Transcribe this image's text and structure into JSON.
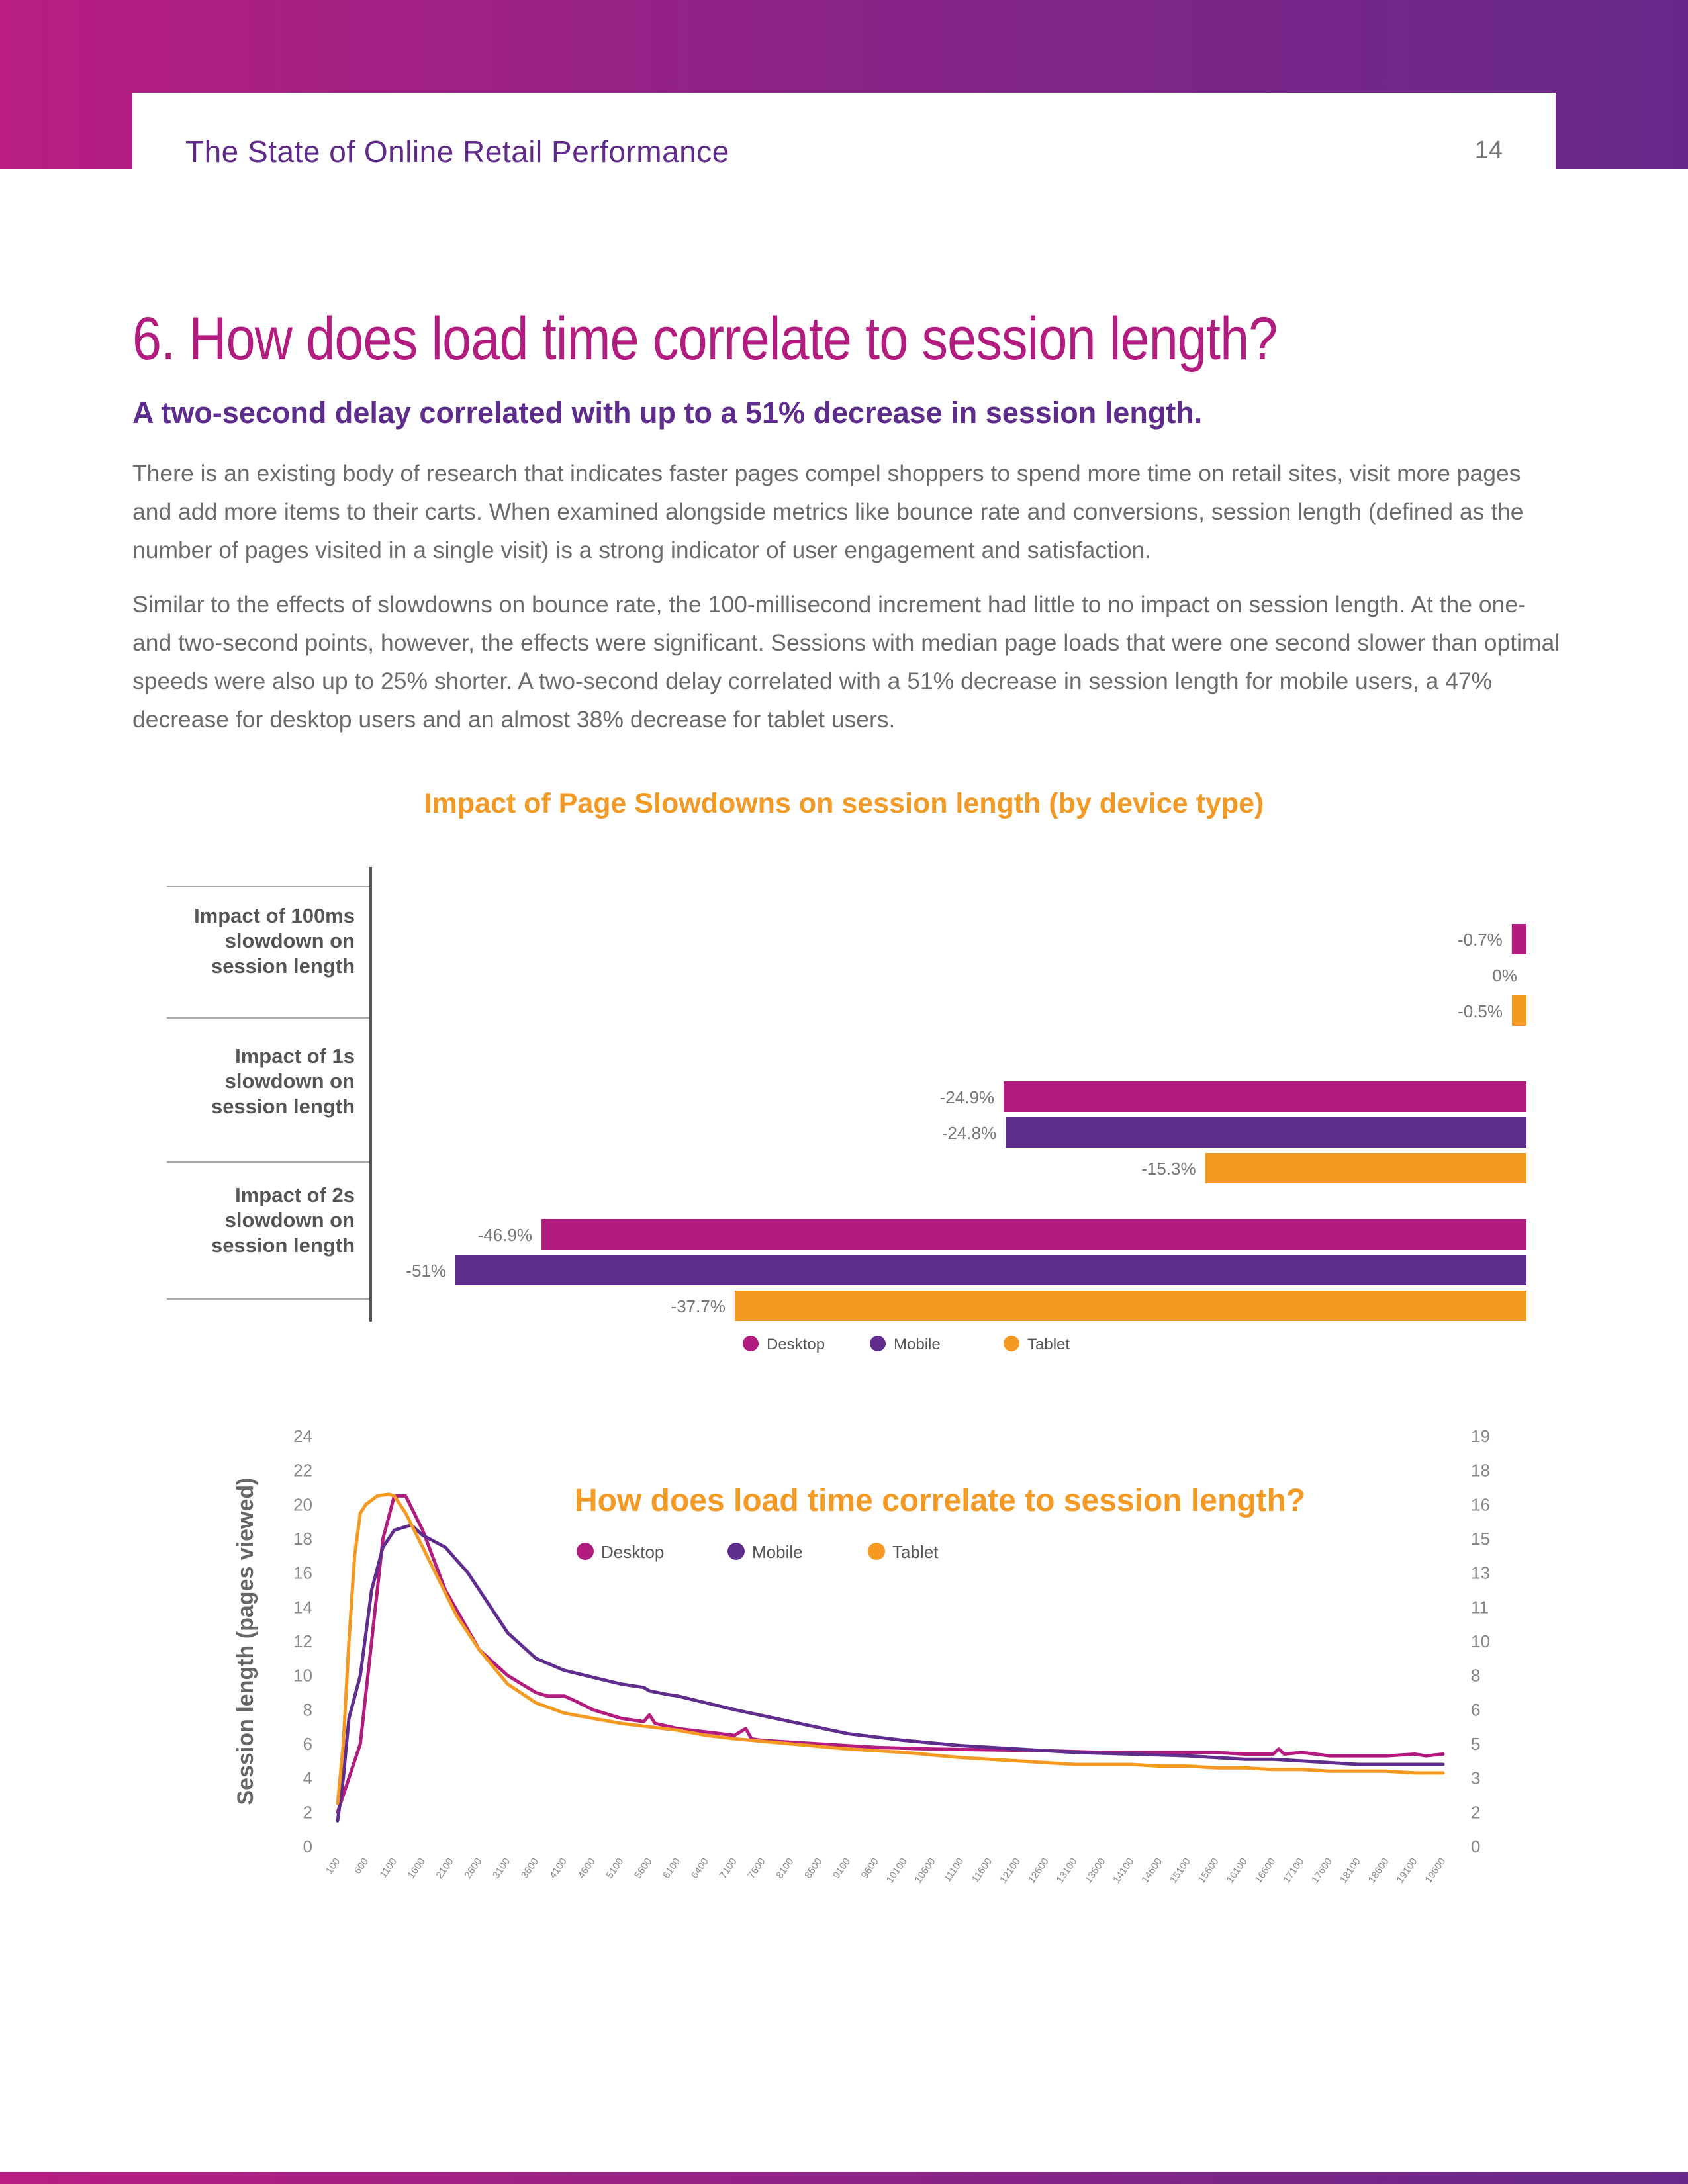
{
  "header": {
    "title": "The State of Online Retail Performance",
    "page_number": "14"
  },
  "heading": "6. How does load time correlate to session length?",
  "subheading": "A two-second delay correlated with up to a 51% decrease in session length.",
  "paragraphs": [
    "There is an existing body of research that indicates faster pages compel shoppers to spend more time on retail sites, visit more pages and add more items to their carts. When examined alongside metrics like bounce rate and conversions, session length (defined as the number of pages visited in a single visit) is a strong indicator of user engagement and satisfaction.",
    "Similar to the effects of slowdowns on bounce rate, the 100-millisecond increment had little to no impact on session length. At the one- and two-second points, however, the effects were significant. Sessions with median page loads that were one second slower than optimal speeds were also up to 25% shorter. A two-second delay correlated with a 51% decrease in session length for mobile users, a 47% decrease for desktop users and an almost 38% decrease for tablet users."
  ],
  "colors": {
    "desktop": "#b31c7f",
    "mobile": "#5f2d8e",
    "tablet": "#f49a22",
    "accent_title": "#f39a24"
  },
  "chart_data": [
    {
      "type": "bar",
      "orientation": "horizontal",
      "title": "Impact of Page Slowdowns on session length (by device type)",
      "categories": [
        "Impact of 100ms slowdown on session length",
        "Impact of 1s slowdown on session length",
        "Impact of 2s slowdown on session length"
      ],
      "category_lines": [
        [
          "Impact of 100ms",
          "slowdown on",
          "session length"
        ],
        [
          "Impact of 1s",
          "slowdown on",
          "session length"
        ],
        [
          "Impact of 2s",
          "slowdown on",
          "session length"
        ]
      ],
      "series": [
        {
          "name": "Desktop",
          "values": [
            -0.7,
            -24.9,
            -46.9
          ],
          "labels": [
            "-0.7%",
            "-24.9%",
            "-46.9%"
          ]
        },
        {
          "name": "Mobile",
          "values": [
            0,
            -24.8,
            -51
          ],
          "labels": [
            "0%",
            "-24.8%",
            "-51%"
          ]
        },
        {
          "name": "Tablet",
          "values": [
            -0.5,
            -15.3,
            -37.7
          ],
          "labels": [
            "-0.5%",
            "-15.3%",
            "-37.7%"
          ]
        }
      ],
      "xlim": [
        -55,
        0
      ],
      "legend": "bottom"
    },
    {
      "type": "line",
      "title": "How does load time correlate to session length?",
      "ylabel": "Session length (pages viewed)",
      "ylim": [
        0,
        24
      ],
      "y_ticks": [
        "0",
        "2",
        "4",
        "6",
        "8",
        "10",
        "12",
        "14",
        "16",
        "18",
        "20",
        "22",
        "24"
      ],
      "y2_ticks": [
        "0",
        "2",
        "3",
        "5",
        "6",
        "8",
        "10",
        "11",
        "13",
        "15",
        "16",
        "18",
        "19"
      ],
      "x_ticks": [
        "100",
        "600",
        "1100",
        "1600",
        "2100",
        "2600",
        "3100",
        "3600",
        "4100",
        "4600",
        "5100",
        "5600",
        "6100",
        "6400",
        "7100",
        "7600",
        "8100",
        "8600",
        "9100",
        "9600",
        "10100",
        "10600",
        "11100",
        "11600",
        "12100",
        "12600",
        "13100",
        "13600",
        "14100",
        "14600",
        "15100",
        "15600",
        "16100",
        "16600",
        "17100",
        "17600",
        "18100",
        "18600",
        "19100",
        "19600"
      ],
      "x_range": [
        100,
        19600
      ],
      "legend": "top",
      "series": [
        {
          "name": "Desktop",
          "x": [
            100,
            300,
            500,
            700,
            900,
            1100,
            1300,
            1600,
            2000,
            2600,
            3100,
            3600,
            3800,
            4100,
            4300,
            4600,
            5100,
            5500,
            5600,
            5700,
            6100,
            6600,
            7100,
            7300,
            7400,
            7600,
            8600,
            9600,
            10600,
            12600,
            13600,
            15600,
            16100,
            16600,
            16700,
            16800,
            17100,
            17600,
            18100,
            18600,
            19100,
            19300,
            19600
          ],
          "y": [
            2.0,
            4.0,
            6.0,
            12.0,
            18.0,
            20.5,
            20.5,
            18.5,
            15.0,
            11.5,
            10.0,
            9.0,
            8.8,
            8.8,
            8.5,
            8.0,
            7.5,
            7.3,
            7.7,
            7.2,
            6.9,
            6.7,
            6.5,
            6.9,
            6.3,
            6.2,
            6.0,
            5.8,
            5.7,
            5.6,
            5.5,
            5.5,
            5.4,
            5.4,
            5.7,
            5.4,
            5.5,
            5.3,
            5.3,
            5.3,
            5.4,
            5.3,
            5.4
          ]
        },
        {
          "name": "Mobile",
          "x": [
            100,
            200,
            300,
            500,
            700,
            900,
            1100,
            1400,
            1600,
            2000,
            2400,
            2800,
            3100,
            3600,
            4100,
            4600,
            5100,
            5500,
            5600,
            5900,
            6100,
            6600,
            7100,
            8100,
            9100,
            10100,
            11100,
            12100,
            13100,
            14100,
            15100,
            15600,
            16100,
            16600,
            17100,
            17600,
            18100,
            19100,
            19600
          ],
          "y": [
            1.5,
            4.0,
            7.5,
            10.0,
            15.0,
            17.5,
            18.5,
            18.8,
            18.2,
            17.5,
            16.0,
            14.0,
            12.5,
            11.0,
            10.3,
            9.9,
            9.5,
            9.3,
            9.1,
            8.9,
            8.8,
            8.4,
            8.0,
            7.3,
            6.6,
            6.2,
            5.9,
            5.7,
            5.5,
            5.4,
            5.3,
            5.2,
            5.1,
            5.1,
            5.0,
            4.9,
            4.8,
            4.8,
            4.8
          ]
        },
        {
          "name": "Tablet",
          "x": [
            100,
            200,
            300,
            400,
            500,
            600,
            800,
            1000,
            1100,
            1300,
            1600,
            1900,
            2200,
            2600,
            3100,
            3600,
            4100,
            4600,
            5100,
            5600,
            6100,
            6600,
            7100,
            8100,
            9100,
            10100,
            11100,
            12100,
            13100,
            13600,
            14100,
            14600,
            15100,
            15600,
            16100,
            16600,
            17100,
            17600,
            18100,
            18600,
            19100,
            19600
          ],
          "y": [
            2.5,
            6.0,
            12.0,
            17.0,
            19.5,
            20.0,
            20.5,
            20.6,
            20.5,
            19.5,
            17.5,
            15.5,
            13.5,
            11.5,
            9.5,
            8.4,
            7.8,
            7.5,
            7.2,
            7.0,
            6.8,
            6.5,
            6.3,
            6.0,
            5.7,
            5.5,
            5.2,
            5.0,
            4.8,
            4.8,
            4.8,
            4.7,
            4.7,
            4.6,
            4.6,
            4.5,
            4.5,
            4.4,
            4.4,
            4.4,
            4.3,
            4.3
          ]
        }
      ]
    }
  ]
}
